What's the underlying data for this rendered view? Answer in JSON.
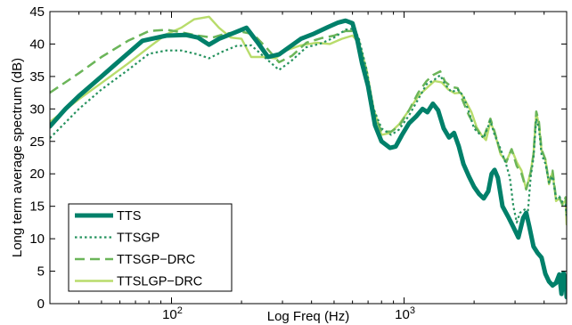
{
  "chart_data": {
    "type": "line",
    "xlabel": "Log Freq (Hz)",
    "ylabel": "Long term average spectrum (dB)",
    "xscale": "log",
    "xlim": [
      30,
      5000
    ],
    "ylim": [
      0,
      45
    ],
    "x_ticks": [
      {
        "value": 100,
        "base": "10",
        "exp": "2"
      },
      {
        "value": 1000,
        "base": "10",
        "exp": "3"
      }
    ],
    "y_ticks": [
      0,
      5,
      10,
      15,
      20,
      25,
      30,
      35,
      40,
      45
    ],
    "grid": false,
    "legend_position": "bottom-left",
    "series": [
      {
        "name": "TTS",
        "color": "#00806a",
        "style": "solid-thick",
        "points": [
          [
            30,
            27.3
          ],
          [
            35,
            30
          ],
          [
            40,
            32
          ],
          [
            50,
            35
          ],
          [
            60,
            37.5
          ],
          [
            75,
            40.5
          ],
          [
            95,
            41.3
          ],
          [
            115,
            41.4
          ],
          [
            130,
            41
          ],
          [
            145,
            39.9
          ],
          [
            160,
            40.8
          ],
          [
            185,
            41.7
          ],
          [
            210,
            42.5
          ],
          [
            235,
            40.2
          ],
          [
            260,
            38
          ],
          [
            290,
            38.4
          ],
          [
            320,
            39.5
          ],
          [
            360,
            40.8
          ],
          [
            410,
            41.6
          ],
          [
            470,
            42.6
          ],
          [
            520,
            43.3
          ],
          [
            560,
            43.6
          ],
          [
            600,
            43.2
          ],
          [
            630,
            40.5
          ],
          [
            660,
            37
          ],
          [
            700,
            33.5
          ],
          [
            750,
            27.5
          ],
          [
            800,
            25
          ],
          [
            870,
            24
          ],
          [
            920,
            24.2
          ],
          [
            980,
            26
          ],
          [
            1050,
            27.8
          ],
          [
            1130,
            28.9
          ],
          [
            1200,
            30
          ],
          [
            1260,
            29.5
          ],
          [
            1330,
            30.8
          ],
          [
            1400,
            29.8
          ],
          [
            1480,
            27
          ],
          [
            1560,
            25.6
          ],
          [
            1640,
            26.3
          ],
          [
            1720,
            24.2
          ],
          [
            1800,
            21.5
          ],
          [
            1900,
            19.6
          ],
          [
            2000,
            18
          ],
          [
            2100,
            16.9
          ],
          [
            2200,
            16.2
          ],
          [
            2300,
            17.3
          ],
          [
            2380,
            20
          ],
          [
            2450,
            20.6
          ],
          [
            2530,
            19.4
          ],
          [
            2650,
            15
          ],
          [
            2800,
            13.4
          ],
          [
            2950,
            11.8
          ],
          [
            3100,
            10.2
          ],
          [
            3250,
            13.2
          ],
          [
            3350,
            14
          ],
          [
            3450,
            12
          ],
          [
            3600,
            8.8
          ],
          [
            3750,
            7.8
          ],
          [
            3900,
            7.1
          ],
          [
            4050,
            4.6
          ],
          [
            4200,
            3.4
          ],
          [
            4350,
            2.8
          ],
          [
            4500,
            3.2
          ],
          [
            4650,
            4.5
          ],
          [
            4750,
            1.5
          ],
          [
            4850,
            4.7
          ],
          [
            4950,
            3.3
          ],
          [
            5000,
            1
          ]
        ]
      },
      {
        "name": "TTSGP",
        "color": "#27935f",
        "style": "dotted",
        "points": [
          [
            30,
            25.5
          ],
          [
            40,
            30
          ],
          [
            50,
            33
          ],
          [
            65,
            36
          ],
          [
            80,
            38.5
          ],
          [
            95,
            39
          ],
          [
            110,
            39
          ],
          [
            130,
            38.4
          ],
          [
            145,
            37.8
          ],
          [
            165,
            38.8
          ],
          [
            190,
            39.7
          ],
          [
            220,
            39.8
          ],
          [
            260,
            37.5
          ],
          [
            290,
            36
          ],
          [
            330,
            37.5
          ],
          [
            380,
            39.5
          ],
          [
            440,
            40.1
          ],
          [
            500,
            41
          ],
          [
            560,
            42.2
          ],
          [
            610,
            42.4
          ],
          [
            640,
            40.8
          ],
          [
            690,
            36
          ],
          [
            740,
            30
          ],
          [
            800,
            27
          ],
          [
            880,
            26
          ],
          [
            950,
            26.8
          ],
          [
            1050,
            29
          ],
          [
            1150,
            31.5
          ],
          [
            1250,
            33.8
          ],
          [
            1350,
            34.5
          ],
          [
            1430,
            35.2
          ],
          [
            1500,
            33.8
          ],
          [
            1600,
            32.6
          ],
          [
            1700,
            33
          ],
          [
            1800,
            32
          ],
          [
            1900,
            29.5
          ],
          [
            2000,
            27
          ],
          [
            2100,
            26.2
          ],
          [
            2200,
            25.5
          ],
          [
            2350,
            28.2
          ],
          [
            2450,
            26
          ],
          [
            2600,
            23.8
          ],
          [
            2750,
            21.4
          ],
          [
            2850,
            19.4
          ],
          [
            2950,
            15
          ],
          [
            3050,
            12.5
          ],
          [
            3150,
            14
          ],
          [
            3300,
            14.5
          ],
          [
            3400,
            13.8
          ],
          [
            3500,
            19.5
          ],
          [
            3600,
            22.5
          ],
          [
            3700,
            28.5
          ],
          [
            3800,
            27
          ],
          [
            3900,
            23
          ],
          [
            4050,
            21.6
          ],
          [
            4200,
            18.7
          ],
          [
            4350,
            19.6
          ],
          [
            4500,
            16.2
          ],
          [
            4650,
            16.5
          ],
          [
            4800,
            15.6
          ],
          [
            4950,
            15.2
          ],
          [
            5000,
            13.5
          ]
        ]
      },
      {
        "name": "TTSGP−DRC",
        "color": "#6bb559",
        "style": "dashed",
        "points": [
          [
            30,
            32.5
          ],
          [
            40,
            35.5
          ],
          [
            50,
            38
          ],
          [
            65,
            40.5
          ],
          [
            80,
            42
          ],
          [
            95,
            42.2
          ],
          [
            110,
            41.8
          ],
          [
            130,
            41.3
          ],
          [
            150,
            41
          ],
          [
            170,
            41.6
          ],
          [
            200,
            41.9
          ],
          [
            225,
            41.5
          ],
          [
            255,
            39.5
          ],
          [
            290,
            37.2
          ],
          [
            330,
            38.2
          ],
          [
            380,
            40.2
          ],
          [
            440,
            40.9
          ],
          [
            500,
            41.3
          ],
          [
            560,
            42
          ],
          [
            610,
            42
          ],
          [
            640,
            40.5
          ],
          [
            690,
            35.5
          ],
          [
            740,
            29.5
          ],
          [
            800,
            26.5
          ],
          [
            880,
            26.5
          ],
          [
            950,
            27.3
          ],
          [
            1050,
            29.8
          ],
          [
            1150,
            32.5
          ],
          [
            1250,
            34.3
          ],
          [
            1330,
            35.2
          ],
          [
            1430,
            35.8
          ],
          [
            1500,
            34.2
          ],
          [
            1600,
            33.4
          ],
          [
            1700,
            33.2
          ],
          [
            1800,
            31
          ],
          [
            1900,
            29
          ],
          [
            2000,
            27.5
          ],
          [
            2100,
            26.4
          ],
          [
            2200,
            25.6
          ],
          [
            2350,
            28.5
          ],
          [
            2450,
            26.5
          ],
          [
            2600,
            23.2
          ],
          [
            2750,
            21.8
          ],
          [
            2900,
            23.8
          ],
          [
            3050,
            21.2
          ],
          [
            3200,
            20
          ],
          [
            3350,
            17.6
          ],
          [
            3500,
            20.2
          ],
          [
            3600,
            23
          ],
          [
            3700,
            29.6
          ],
          [
            3800,
            28
          ],
          [
            3900,
            23.8
          ],
          [
            4050,
            22.2
          ],
          [
            4200,
            18.6
          ],
          [
            4350,
            20.5
          ],
          [
            4500,
            16.2
          ],
          [
            4650,
            16.3
          ],
          [
            4800,
            15.2
          ],
          [
            4950,
            16.4
          ],
          [
            5000,
            14
          ]
        ]
      },
      {
        "name": "TTSLGP−DRC",
        "color": "#b8dc6b",
        "style": "solid",
        "points": [
          [
            30,
            28
          ],
          [
            40,
            31.5
          ],
          [
            50,
            34
          ],
          [
            65,
            37
          ],
          [
            80,
            39.5
          ],
          [
            95,
            41.5
          ],
          [
            110,
            42.5
          ],
          [
            125,
            43.8
          ],
          [
            145,
            44.2
          ],
          [
            160,
            42.5
          ],
          [
            180,
            41
          ],
          [
            200,
            40.8
          ],
          [
            220,
            38
          ],
          [
            250,
            38
          ],
          [
            280,
            37.8
          ],
          [
            310,
            39
          ],
          [
            360,
            39.8
          ],
          [
            420,
            40.2
          ],
          [
            480,
            40
          ],
          [
            540,
            40.8
          ],
          [
            600,
            41.3
          ],
          [
            640,
            40.2
          ],
          [
            690,
            36
          ],
          [
            740,
            30
          ],
          [
            800,
            26
          ],
          [
            870,
            26.3
          ],
          [
            950,
            27.6
          ],
          [
            1050,
            29.8
          ],
          [
            1150,
            32
          ],
          [
            1250,
            33.2
          ],
          [
            1350,
            34.3
          ],
          [
            1450,
            34.1
          ],
          [
            1550,
            33
          ],
          [
            1650,
            32.4
          ],
          [
            1750,
            32.5
          ],
          [
            1850,
            31
          ],
          [
            1950,
            29.5
          ],
          [
            2050,
            27.2
          ],
          [
            2150,
            26
          ],
          [
            2250,
            25.2
          ],
          [
            2350,
            28
          ],
          [
            2450,
            26.4
          ],
          [
            2600,
            23
          ],
          [
            2750,
            21.9
          ],
          [
            2900,
            23.8
          ],
          [
            3050,
            21.8
          ],
          [
            3200,
            20.5
          ],
          [
            3350,
            17.6
          ],
          [
            3500,
            20.3
          ],
          [
            3600,
            23.1
          ],
          [
            3700,
            29.4
          ],
          [
            3800,
            27.6
          ],
          [
            3900,
            23.6
          ],
          [
            4050,
            22.3
          ],
          [
            4200,
            18.4
          ],
          [
            4350,
            20.3
          ],
          [
            4500,
            15.8
          ],
          [
            4650,
            16.2
          ],
          [
            4800,
            15.4
          ],
          [
            4950,
            15.9
          ],
          [
            5000,
            12.2
          ]
        ]
      }
    ]
  }
}
